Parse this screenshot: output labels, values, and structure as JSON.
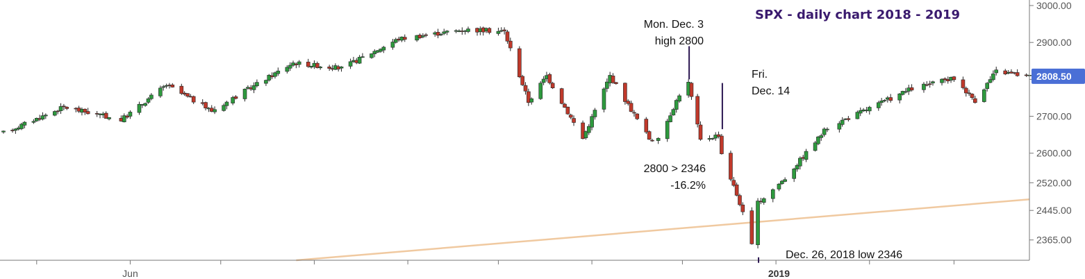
{
  "chart_data": {
    "type": "candlestick",
    "title": "SPX - daily chart 2018 - 2019",
    "title_color": "#3a1a6e",
    "y_axis": {
      "position": "right",
      "ticks": [
        "3000.00",
        "2900.00",
        "2800.00",
        "2700.00",
        "2600.00",
        "2520.00",
        "2445.00",
        "2365.00"
      ],
      "tick_values": [
        3000,
        2900,
        2800,
        2700,
        2600,
        2520,
        2445,
        2365
      ],
      "range": [
        2310,
        3015
      ]
    },
    "x_axis": {
      "labels": [
        {
          "text": "Jun",
          "date": "2018-06-01",
          "bold": false
        },
        {
          "text": "2019",
          "date": "2019-01-02",
          "bold": true
        }
      ],
      "range": [
        "2018-04-20",
        "2019-03-26"
      ]
    },
    "current_price": {
      "text": "2808.50",
      "value": 2808.5,
      "color": "#4a6fd6"
    },
    "up_color": "#2e9a3e",
    "down_color": "#c0392b",
    "trendline": {
      "color": "#f0c9a0",
      "points": [
        {
          "date": "2018-07-26",
          "value": 2310
        },
        {
          "date": "2019-03-26",
          "value": 2475
        }
      ]
    },
    "key_points": [
      {
        "date": "2018-04-20",
        "value": 2655
      },
      {
        "date": "2018-05-10",
        "value": 2725
      },
      {
        "date": "2018-05-29",
        "value": 2690
      },
      {
        "date": "2018-06-13",
        "value": 2785
      },
      {
        "date": "2018-06-28",
        "value": 2715
      },
      {
        "date": "2018-07-25",
        "value": 2845
      },
      {
        "date": "2018-08-10",
        "value": 2830
      },
      {
        "date": "2018-08-29",
        "value": 2910
      },
      {
        "date": "2018-09-20",
        "value": 2935
      },
      {
        "date": "2018-10-03",
        "value": 2930
      },
      {
        "date": "2018-10-11",
        "value": 2740
      },
      {
        "date": "2018-10-17",
        "value": 2810
      },
      {
        "date": "2018-10-29",
        "value": 2640
      },
      {
        "date": "2018-11-07",
        "value": 2810
      },
      {
        "date": "2018-11-20",
        "value": 2640
      },
      {
        "date": "2018-11-23",
        "value": 2635
      },
      {
        "date": "2018-11-30",
        "value": 2760
      },
      {
        "date": "2018-12-03",
        "value": 2790
      },
      {
        "date": "2018-12-07",
        "value": 2635
      },
      {
        "date": "2018-12-13",
        "value": 2650
      },
      {
        "date": "2018-12-14",
        "value": 2600
      },
      {
        "date": "2018-12-20",
        "value": 2465
      },
      {
        "date": "2018-12-24",
        "value": 2351
      },
      {
        "date": "2018-12-26",
        "value": 2465
      },
      {
        "date": "2019-01-04",
        "value": 2532
      },
      {
        "date": "2019-01-18",
        "value": 2670
      },
      {
        "date": "2019-02-05",
        "value": 2737
      },
      {
        "date": "2019-02-15",
        "value": 2775
      },
      {
        "date": "2019-03-01",
        "value": 2803
      },
      {
        "date": "2019-03-08",
        "value": 2743
      },
      {
        "date": "2019-03-15",
        "value": 2822
      },
      {
        "date": "2019-03-26",
        "value": 2808
      }
    ],
    "annotations": [
      {
        "lines": [
          "Mon. Dec. 3",
          "high 2800"
        ],
        "align": "end",
        "marker": {
          "date": "2018-12-03",
          "from": 2890,
          "to": 2800
        }
      },
      {
        "lines": [
          "Fri.",
          "Dec. 14"
        ],
        "align": "start",
        "marker": {
          "date": "2018-12-14",
          "from": 2790,
          "to": 2665
        }
      },
      {
        "lines": [
          "2800 > 2346",
          "-16.2%"
        ],
        "align": "end"
      },
      {
        "lines": [
          "Dec. 26, 2018 low 2346"
        ],
        "align": "start",
        "marker": {
          "date": "2018-12-26",
          "from": 2318,
          "to": 2303
        }
      }
    ]
  }
}
